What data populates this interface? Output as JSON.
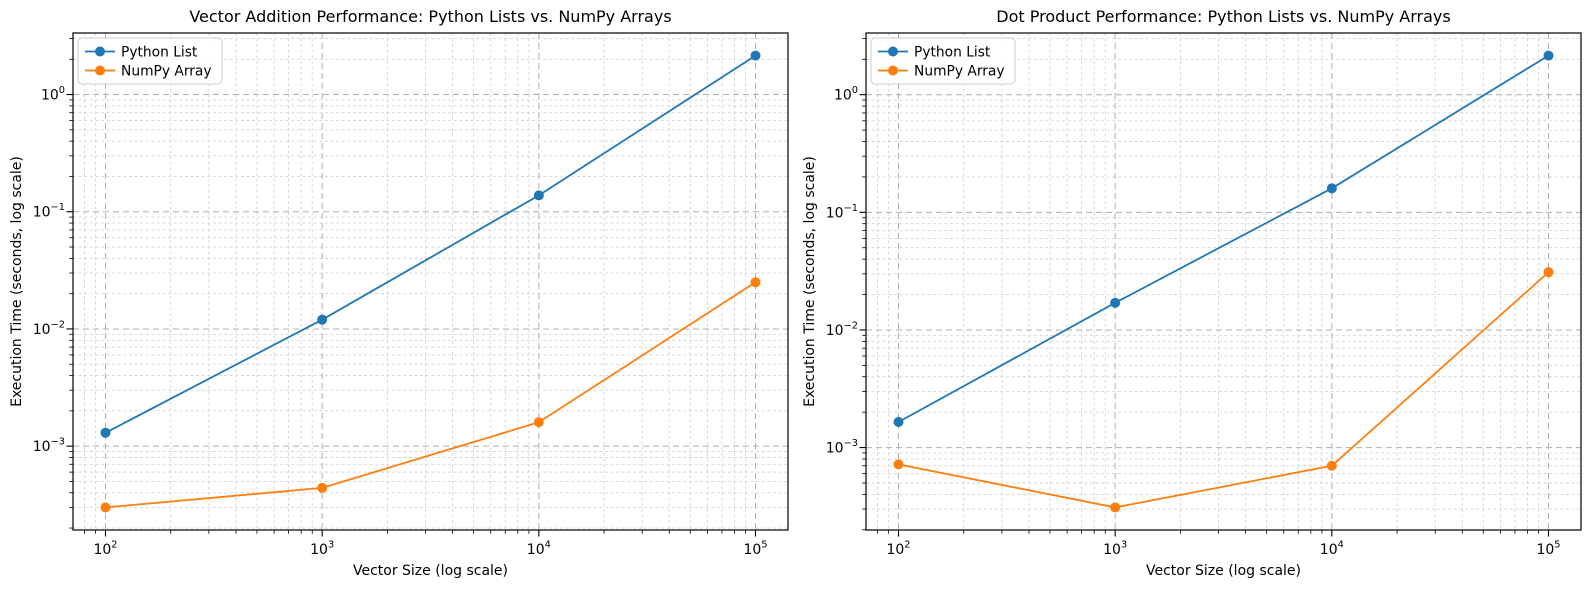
{
  "figure": {
    "background": "#ffffff"
  },
  "colors": {
    "python_list": "#1f77b4",
    "numpy_array": "#ff7f0e",
    "grid_major": "#b0b0b0",
    "grid_minor": "#d2d2d2",
    "spine": "#000000",
    "text": "#000000",
    "legend_border": "#cccccc",
    "legend_bg": "#ffffff"
  },
  "chart_data": [
    {
      "type": "line",
      "title": "Vector Addition Performance: Python Lists vs. NumPy Arrays",
      "xlabel": "Vector Size (log scale)",
      "ylabel": "Execution Time (seconds, log scale)",
      "xscale": "log",
      "yscale": "log",
      "grid": {
        "which": "both",
        "style": "dashed"
      },
      "legend_position": "upper-left",
      "axis_margin": 0.05,
      "x": [
        100,
        1000,
        10000,
        100000
      ],
      "series": [
        {
          "name": "Python List",
          "color": "#1f77b4",
          "marker": "circle",
          "values": [
            0.0013,
            0.012,
            0.138,
            2.15
          ]
        },
        {
          "name": "NumPy Array",
          "color": "#ff7f0e",
          "marker": "circle",
          "values": [
            0.0003,
            0.00044,
            0.0016,
            0.025
          ]
        }
      ],
      "x_ticks": [
        {
          "value": 100,
          "base": "10",
          "exp": "2"
        },
        {
          "value": 1000,
          "base": "10",
          "exp": "3"
        },
        {
          "value": 10000,
          "base": "10",
          "exp": "4"
        },
        {
          "value": 100000,
          "base": "10",
          "exp": "5"
        }
      ],
      "y_ticks": [
        {
          "value": 1,
          "base": "10",
          "exp": "0"
        },
        {
          "value": 0.1,
          "base": "10",
          "exp": "−1"
        },
        {
          "value": 0.01,
          "base": "10",
          "exp": "−2"
        },
        {
          "value": 0.001,
          "base": "10",
          "exp": "−3"
        }
      ]
    },
    {
      "type": "line",
      "title": "Dot Product Performance: Python Lists vs. NumPy Arrays",
      "xlabel": "Vector Size (log scale)",
      "ylabel": "Execution Time (seconds, log scale)",
      "xscale": "log",
      "yscale": "log",
      "grid": {
        "which": "both",
        "style": "dashed"
      },
      "legend_position": "upper-left",
      "axis_margin": 0.05,
      "x": [
        100,
        1000,
        10000,
        100000
      ],
      "series": [
        {
          "name": "Python List",
          "color": "#1f77b4",
          "marker": "circle",
          "values": [
            0.00165,
            0.017,
            0.16,
            2.15
          ]
        },
        {
          "name": "NumPy Array",
          "color": "#ff7f0e",
          "marker": "circle",
          "values": [
            0.00072,
            0.00031,
            0.0007,
            0.031
          ]
        }
      ],
      "x_ticks": [
        {
          "value": 100,
          "base": "10",
          "exp": "2"
        },
        {
          "value": 1000,
          "base": "10",
          "exp": "3"
        },
        {
          "value": 10000,
          "base": "10",
          "exp": "4"
        },
        {
          "value": 100000,
          "base": "10",
          "exp": "5"
        }
      ],
      "y_ticks": [
        {
          "value": 1,
          "base": "10",
          "exp": "0"
        },
        {
          "value": 0.1,
          "base": "10",
          "exp": "−1"
        },
        {
          "value": 0.01,
          "base": "10",
          "exp": "−2"
        },
        {
          "value": 0.001,
          "base": "10",
          "exp": "−3"
        }
      ]
    }
  ]
}
